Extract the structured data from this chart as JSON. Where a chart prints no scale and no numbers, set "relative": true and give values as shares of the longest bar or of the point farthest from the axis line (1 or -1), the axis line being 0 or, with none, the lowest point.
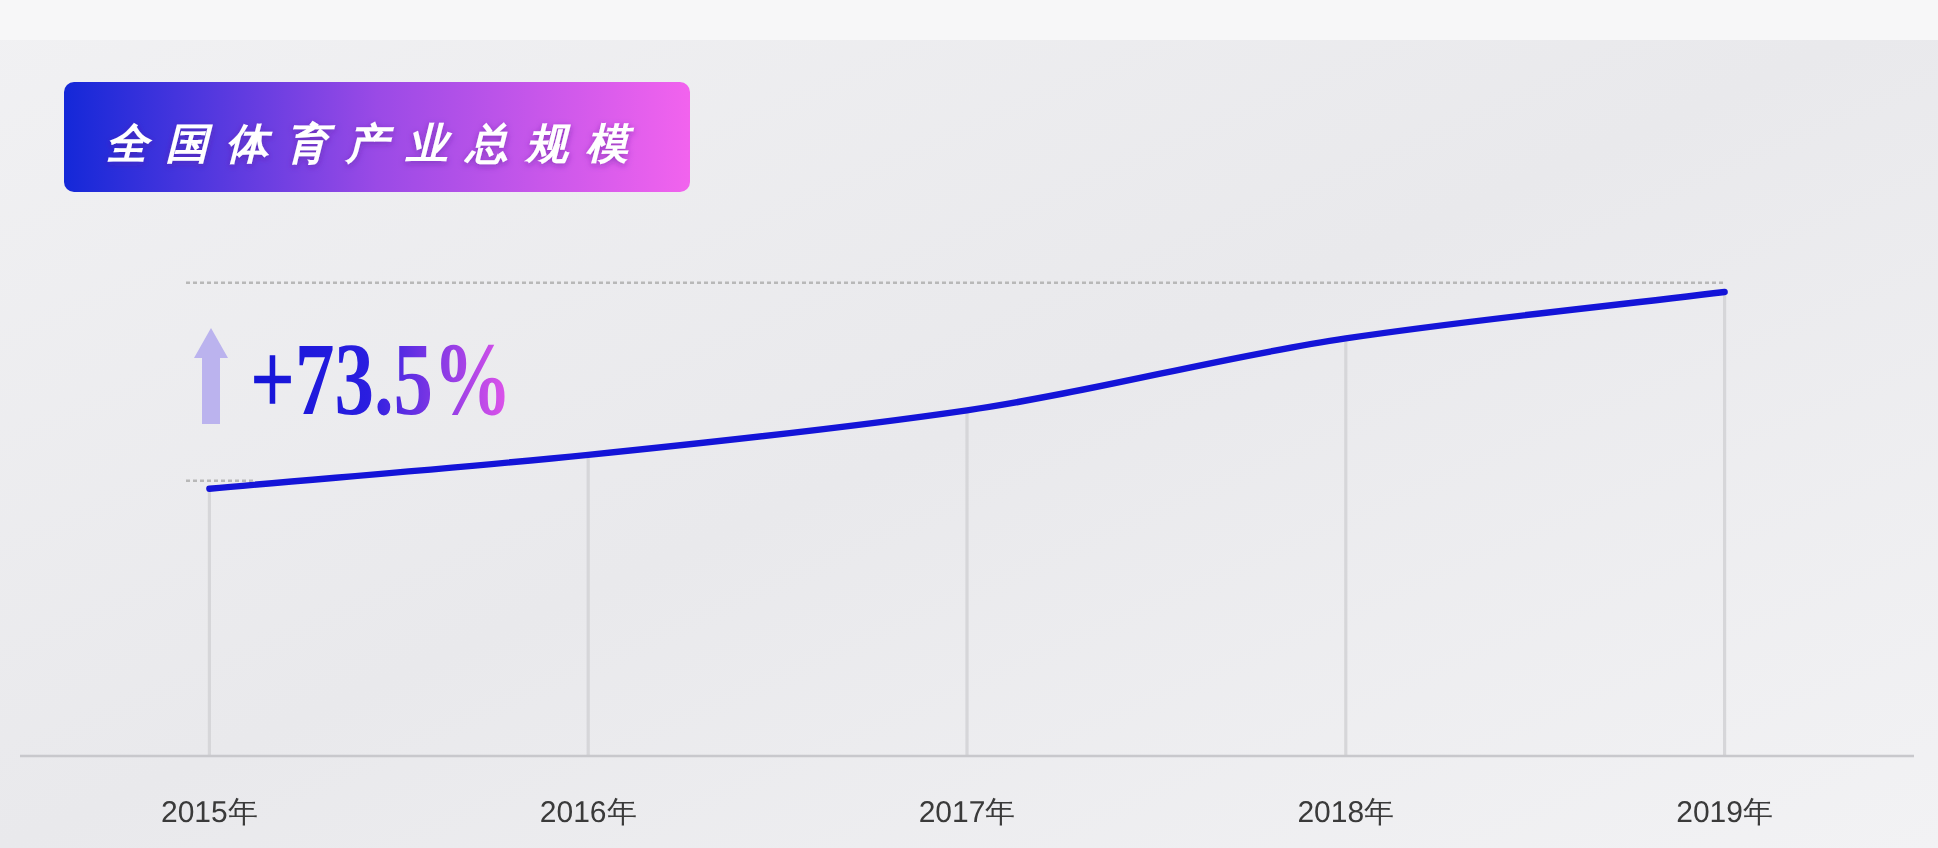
{
  "chart_data": {
    "type": "line",
    "title": "全国体育产业总规模",
    "categories": [
      "2015年",
      "2016年",
      "2017年",
      "2018年",
      "2019年"
    ],
    "series": [
      {
        "color": "#1414d8",
        "values": [
          0.576,
          0.649,
          0.745,
          0.9,
          1
        ]
      }
    ],
    "relative": true,
    "grid": "x",
    "annotations": [
      "+73.5%"
    ],
    "ref_lines": [
      {
        "axis": "y",
        "value": 1.02,
        "line_style": "dotted",
        "color": "#b8b8b8"
      }
    ]
  }
}
